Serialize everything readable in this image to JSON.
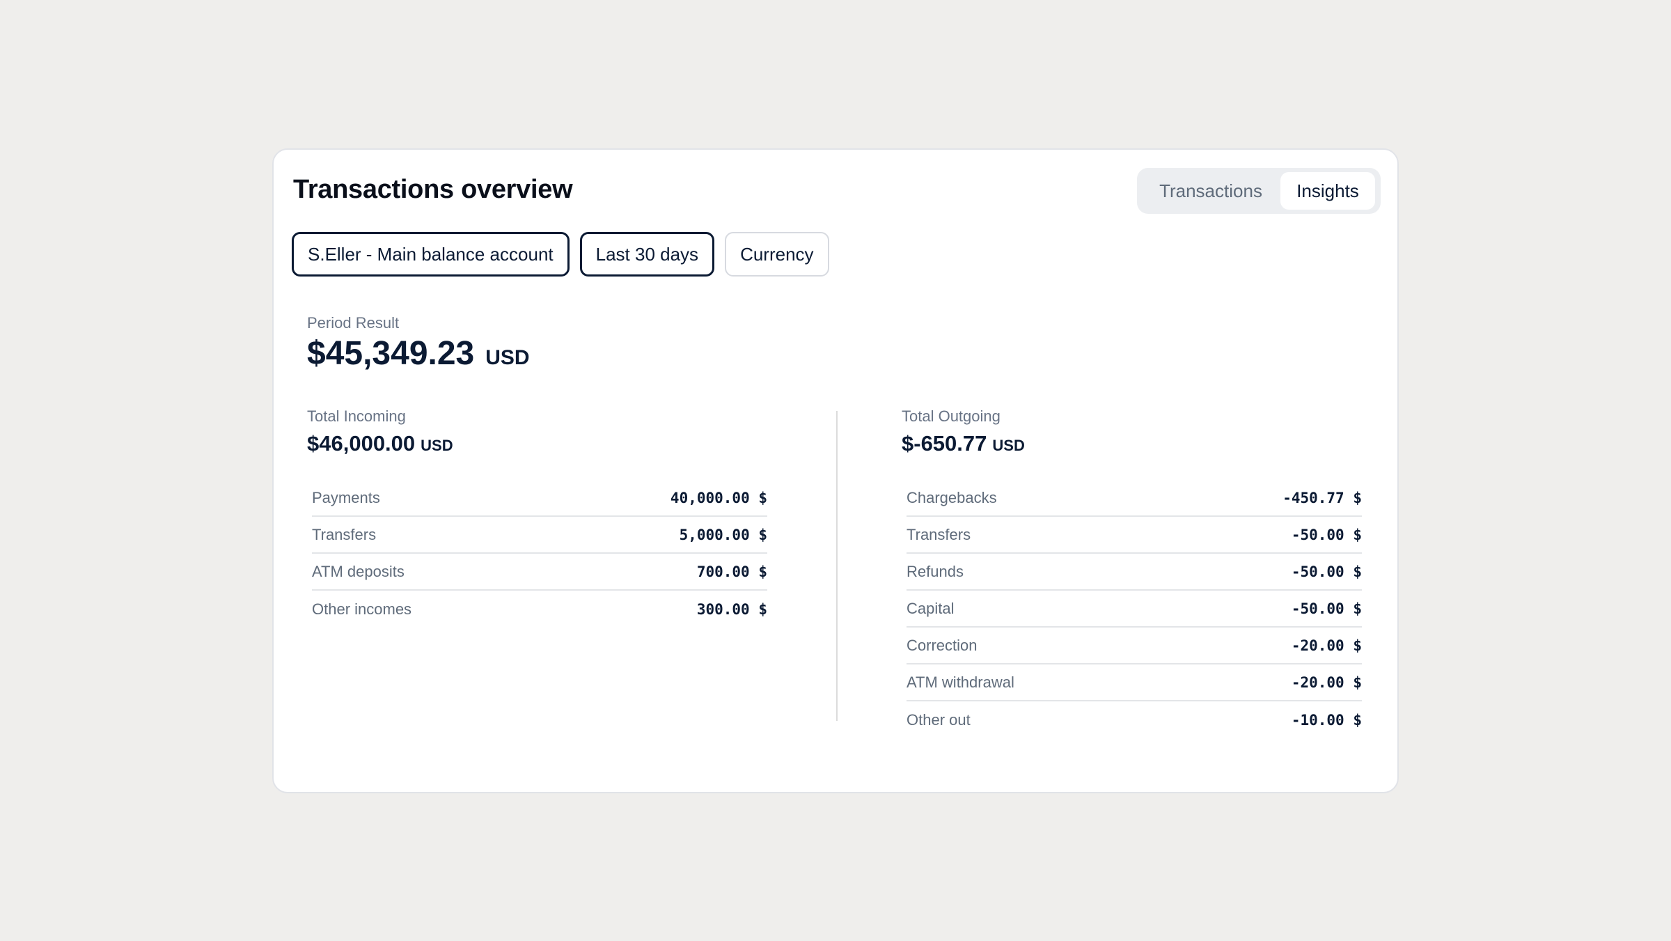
{
  "header": {
    "title": "Transactions overview",
    "view_toggle": {
      "options": [
        {
          "label": "Transactions",
          "active": false
        },
        {
          "label": "Insights",
          "active": true
        }
      ]
    }
  },
  "filters": [
    {
      "label": "S.Eller - Main balance account",
      "selected": true
    },
    {
      "label": "Last 30 days",
      "selected": true
    },
    {
      "label": "Currency",
      "selected": false
    }
  ],
  "period_result": {
    "label": "Period Result",
    "amount": "$45,349.23",
    "currency": "USD"
  },
  "incoming": {
    "label": "Total Incoming",
    "amount": "$46,000.00",
    "currency": "USD",
    "rows": [
      {
        "name": "Payments",
        "amount": "40,000.00 $"
      },
      {
        "name": "Transfers",
        "amount": "5,000.00 $"
      },
      {
        "name": "ATM deposits",
        "amount": "700.00 $"
      },
      {
        "name": "Other incomes",
        "amount": "300.00 $"
      }
    ]
  },
  "outgoing": {
    "label": "Total Outgoing",
    "amount": "$-650.77",
    "currency": "USD",
    "rows": [
      {
        "name": "Chargebacks",
        "amount": "-450.77 $"
      },
      {
        "name": "Transfers",
        "amount": "-50.00 $"
      },
      {
        "name": "Refunds",
        "amount": "-50.00 $"
      },
      {
        "name": "Capital",
        "amount": "-50.00 $"
      },
      {
        "name": "Correction",
        "amount": "-20.00 $"
      },
      {
        "name": "ATM withdrawal",
        "amount": "-20.00 $"
      },
      {
        "name": "Other out",
        "amount": "-10.00 $"
      }
    ]
  },
  "colors": {
    "page_background": "#efeeec",
    "card_background": "#ffffff",
    "primary_text": "#0b1a33",
    "secondary_text": "#687385",
    "toggle_background": "#eceef1"
  }
}
